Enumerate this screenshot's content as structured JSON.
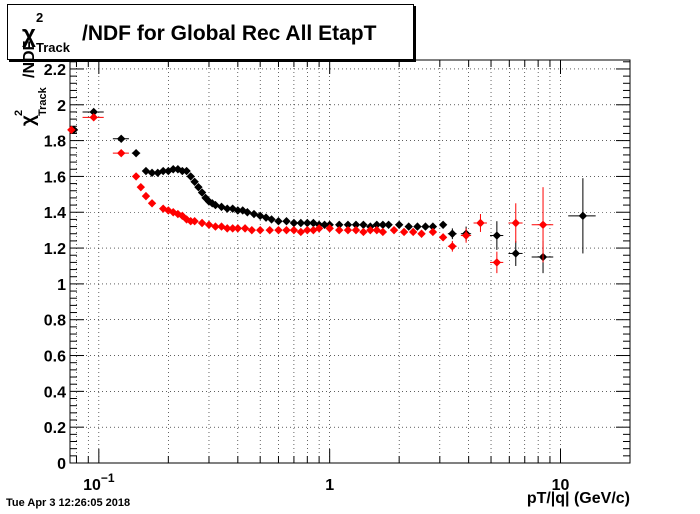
{
  "timestamp": "Tue Apr  3 12:26:05 2018",
  "chart_data": {
    "type": "scatter",
    "title": "/NDF for Global Rec All EtapT",
    "title_symbol": "χ",
    "title_sup": "2",
    "title_sub": "Track",
    "xlabel": "pT/|q| (GeV/c)",
    "ylabel": "/NDF",
    "ylabel_symbol": "χ",
    "ylabel_sup": "2",
    "ylabel_sub": "Track",
    "x_scale": "log",
    "xlim": [
      0.075,
      20
    ],
    "ylim": [
      0,
      2.25
    ],
    "grid": true,
    "legend": "none",
    "x_tick_labels": [
      {
        "x": 0.1,
        "base": "10",
        "exp": "−1"
      },
      {
        "x": 1,
        "base": "1",
        "exp": ""
      },
      {
        "x": 10,
        "base": "10",
        "exp": ""
      }
    ],
    "y_ticks": [
      0,
      0.2,
      0.4,
      0.6,
      0.8,
      1,
      1.2,
      1.4,
      1.6,
      1.8,
      2,
      2.2
    ],
    "y_tick_labels": [
      "0",
      "0.2",
      "0.4",
      "0.6",
      "0.8",
      "1",
      "1.2",
      "1.4",
      "1.6",
      "1.8",
      "2",
      "2.2"
    ],
    "series": [
      {
        "color": "#000000",
        "points": [
          {
            "x": 0.078,
            "y": 1.86,
            "xerr": 0.003,
            "yerr": 0.01
          },
          {
            "x": 0.095,
            "y": 1.96,
            "xerr": 0.01,
            "yerr": 0.01
          },
          {
            "x": 0.125,
            "y": 1.81,
            "xerr": 0.01,
            "yerr": 0.01
          },
          {
            "x": 0.145,
            "y": 1.73,
            "xerr": 0.006,
            "yerr": 0.01
          },
          {
            "x": 0.16,
            "y": 1.63
          },
          {
            "x": 0.17,
            "y": 1.62
          },
          {
            "x": 0.18,
            "y": 1.62
          },
          {
            "x": 0.19,
            "y": 1.63
          },
          {
            "x": 0.2,
            "y": 1.63
          },
          {
            "x": 0.21,
            "y": 1.64
          },
          {
            "x": 0.22,
            "y": 1.64
          },
          {
            "x": 0.23,
            "y": 1.63
          },
          {
            "x": 0.24,
            "y": 1.63
          },
          {
            "x": 0.25,
            "y": 1.6
          },
          {
            "x": 0.26,
            "y": 1.57
          },
          {
            "x": 0.27,
            "y": 1.54
          },
          {
            "x": 0.28,
            "y": 1.51
          },
          {
            "x": 0.29,
            "y": 1.48
          },
          {
            "x": 0.3,
            "y": 1.46
          },
          {
            "x": 0.31,
            "y": 1.45
          },
          {
            "x": 0.32,
            "y": 1.44
          },
          {
            "x": 0.34,
            "y": 1.43
          },
          {
            "x": 0.36,
            "y": 1.42
          },
          {
            "x": 0.38,
            "y": 1.42
          },
          {
            "x": 0.4,
            "y": 1.41
          },
          {
            "x": 0.42,
            "y": 1.41
          },
          {
            "x": 0.44,
            "y": 1.4
          },
          {
            "x": 0.47,
            "y": 1.39
          },
          {
            "x": 0.5,
            "y": 1.38
          },
          {
            "x": 0.53,
            "y": 1.37
          },
          {
            "x": 0.56,
            "y": 1.36
          },
          {
            "x": 0.6,
            "y": 1.35
          },
          {
            "x": 0.65,
            "y": 1.35
          },
          {
            "x": 0.7,
            "y": 1.34
          },
          {
            "x": 0.75,
            "y": 1.34
          },
          {
            "x": 0.8,
            "y": 1.34
          },
          {
            "x": 0.85,
            "y": 1.34
          },
          {
            "x": 0.9,
            "y": 1.33
          },
          {
            "x": 0.95,
            "y": 1.33
          },
          {
            "x": 1.0,
            "y": 1.33
          },
          {
            "x": 1.1,
            "y": 1.33
          },
          {
            "x": 1.2,
            "y": 1.33
          },
          {
            "x": 1.3,
            "y": 1.33
          },
          {
            "x": 1.4,
            "y": 1.33
          },
          {
            "x": 1.5,
            "y": 1.32
          },
          {
            "x": 1.6,
            "y": 1.33
          },
          {
            "x": 1.7,
            "y": 1.33
          },
          {
            "x": 1.8,
            "y": 1.33
          },
          {
            "x": 2.0,
            "y": 1.33
          },
          {
            "x": 2.2,
            "y": 1.32
          },
          {
            "x": 2.4,
            "y": 1.32
          },
          {
            "x": 2.6,
            "y": 1.32
          },
          {
            "x": 2.8,
            "y": 1.32
          },
          {
            "x": 3.1,
            "y": 1.33,
            "yerr": 0.01
          },
          {
            "x": 3.4,
            "y": 1.28,
            "xerr": 0.15,
            "yerr": 0.03
          },
          {
            "x": 3.9,
            "y": 1.28,
            "xerr": 0.2,
            "yerr": 0.04
          },
          {
            "x": 5.3,
            "y": 1.27,
            "xerr": 0.35,
            "yerr": 0.08
          },
          {
            "x": 6.4,
            "y": 1.17,
            "xerr": 0.45,
            "yerr": 0.07
          },
          {
            "x": 8.4,
            "y": 1.15,
            "xerr": 0.9,
            "yerr": 0.09
          },
          {
            "x": 12.5,
            "y": 1.38,
            "xerr": 1.7,
            "yerr": 0.21
          }
        ]
      },
      {
        "color": "#ff0000",
        "points": [
          {
            "x": 0.076,
            "y": 1.86,
            "xerr": 0.003,
            "yerr": 0.01
          },
          {
            "x": 0.095,
            "y": 1.93,
            "xerr": 0.01,
            "yerr": 0.01
          },
          {
            "x": 0.125,
            "y": 1.73,
            "xerr": 0.01,
            "yerr": 0.01
          },
          {
            "x": 0.145,
            "y": 1.6
          },
          {
            "x": 0.152,
            "y": 1.54
          },
          {
            "x": 0.16,
            "y": 1.49
          },
          {
            "x": 0.17,
            "y": 1.45
          },
          {
            "x": 0.19,
            "y": 1.42
          },
          {
            "x": 0.2,
            "y": 1.41
          },
          {
            "x": 0.21,
            "y": 1.4
          },
          {
            "x": 0.22,
            "y": 1.39
          },
          {
            "x": 0.23,
            "y": 1.38
          },
          {
            "x": 0.24,
            "y": 1.36
          },
          {
            "x": 0.25,
            "y": 1.35
          },
          {
            "x": 0.26,
            "y": 1.35
          },
          {
            "x": 0.28,
            "y": 1.34
          },
          {
            "x": 0.3,
            "y": 1.33
          },
          {
            "x": 0.32,
            "y": 1.32
          },
          {
            "x": 0.34,
            "y": 1.32
          },
          {
            "x": 0.36,
            "y": 1.31
          },
          {
            "x": 0.38,
            "y": 1.31
          },
          {
            "x": 0.4,
            "y": 1.31
          },
          {
            "x": 0.43,
            "y": 1.31
          },
          {
            "x": 0.46,
            "y": 1.3
          },
          {
            "x": 0.5,
            "y": 1.3
          },
          {
            "x": 0.55,
            "y": 1.3
          },
          {
            "x": 0.6,
            "y": 1.3
          },
          {
            "x": 0.65,
            "y": 1.3
          },
          {
            "x": 0.7,
            "y": 1.3
          },
          {
            "x": 0.75,
            "y": 1.29
          },
          {
            "x": 0.8,
            "y": 1.3
          },
          {
            "x": 0.85,
            "y": 1.3
          },
          {
            "x": 0.9,
            "y": 1.31
          },
          {
            "x": 1.0,
            "y": 1.31
          },
          {
            "x": 1.1,
            "y": 1.3
          },
          {
            "x": 1.2,
            "y": 1.3
          },
          {
            "x": 1.3,
            "y": 1.3
          },
          {
            "x": 1.4,
            "y": 1.29
          },
          {
            "x": 1.5,
            "y": 1.3
          },
          {
            "x": 1.6,
            "y": 1.3
          },
          {
            "x": 1.7,
            "y": 1.29
          },
          {
            "x": 1.9,
            "y": 1.3
          },
          {
            "x": 2.1,
            "y": 1.29
          },
          {
            "x": 2.3,
            "y": 1.29
          },
          {
            "x": 2.5,
            "y": 1.28
          },
          {
            "x": 2.8,
            "y": 1.29
          },
          {
            "x": 3.1,
            "y": 1.26,
            "yerr": 0.02
          },
          {
            "x": 3.4,
            "y": 1.21,
            "xerr": 0.15,
            "yerr": 0.03
          },
          {
            "x": 3.9,
            "y": 1.27,
            "xerr": 0.2,
            "yerr": 0.04
          },
          {
            "x": 4.5,
            "y": 1.34,
            "xerr": 0.3,
            "yerr": 0.05
          },
          {
            "x": 5.3,
            "y": 1.12,
            "xerr": 0.35,
            "yerr": 0.06
          },
          {
            "x": 6.4,
            "y": 1.34,
            "xerr": 0.45,
            "yerr": 0.11
          },
          {
            "x": 8.4,
            "y": 1.33,
            "xerr": 0.9,
            "yerr": 0.21
          }
        ]
      }
    ]
  }
}
